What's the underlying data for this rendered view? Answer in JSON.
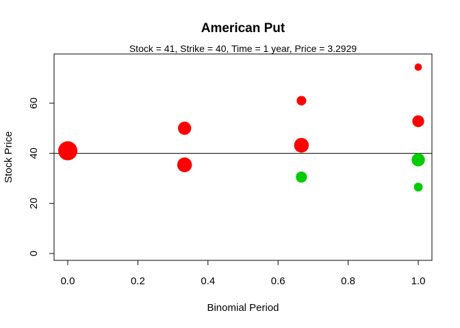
{
  "chart_data": {
    "type": "scatter",
    "title": "American Put",
    "subtitle": "Stock = 41, Strike = 40, Time = 1 year, Price = 3.2929",
    "xlabel": "Binomial Period",
    "ylabel": "Stock Price",
    "xlim": [
      0,
      1
    ],
    "ylim": [
      0,
      74.5
    ],
    "x_ticks": [
      0.0,
      0.2,
      0.4,
      0.6,
      0.8,
      1.0
    ],
    "x_tick_labels": [
      "0.0",
      "0.2",
      "0.4",
      "0.6",
      "0.8",
      "1.0"
    ],
    "y_ticks": [
      0,
      20,
      40,
      60
    ],
    "y_tick_labels": [
      "0",
      "20",
      "40",
      "60"
    ],
    "grid": false,
    "reference_line": {
      "y": 40,
      "color": "#000000"
    },
    "colors": {
      "continue": "#ff0000",
      "exercise": "#00cd00"
    },
    "points": [
      {
        "x": 0.0,
        "y": 41.0,
        "relative_size": 1.0,
        "status": "continue"
      },
      {
        "x": 0.3333,
        "y": 50.0,
        "relative_size": 0.69,
        "status": "continue"
      },
      {
        "x": 0.3333,
        "y": 35.4,
        "relative_size": 0.77,
        "status": "continue"
      },
      {
        "x": 0.6667,
        "y": 61.0,
        "relative_size": 0.5,
        "status": "continue"
      },
      {
        "x": 0.6667,
        "y": 43.2,
        "relative_size": 0.77,
        "status": "continue"
      },
      {
        "x": 0.6667,
        "y": 30.5,
        "relative_size": 0.58,
        "status": "exercise"
      },
      {
        "x": 1.0,
        "y": 74.4,
        "relative_size": 0.38,
        "status": "continue"
      },
      {
        "x": 1.0,
        "y": 52.8,
        "relative_size": 0.62,
        "status": "continue"
      },
      {
        "x": 1.0,
        "y": 37.4,
        "relative_size": 0.69,
        "status": "exercise"
      },
      {
        "x": 1.0,
        "y": 26.5,
        "relative_size": 0.46,
        "status": "exercise"
      }
    ]
  }
}
